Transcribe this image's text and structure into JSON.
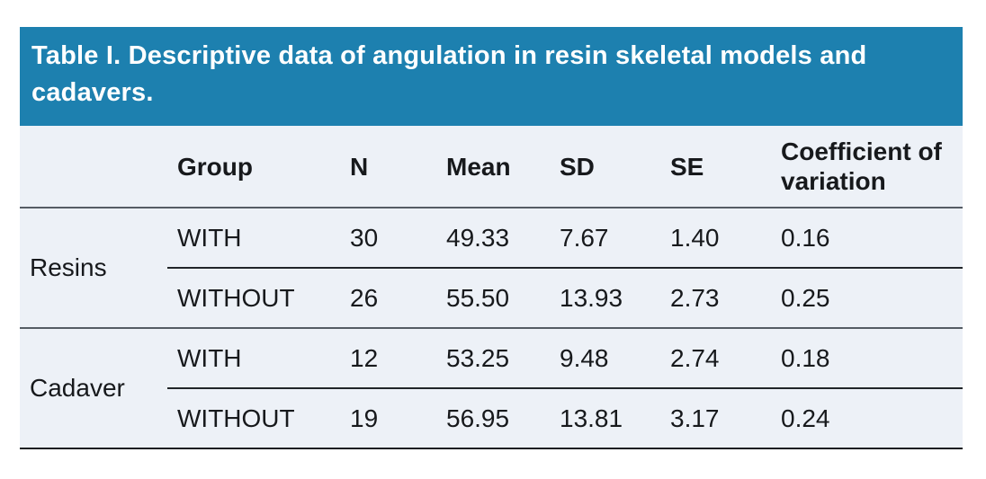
{
  "table": {
    "title": "Table I. Descriptive data of angulation in resin skeletal models and cadavers.",
    "columns": {
      "group": "Group",
      "n": "N",
      "mean": "Mean",
      "sd": "SD",
      "se": "SE",
      "cv": "Coefficient of variation"
    },
    "groups": [
      {
        "label": "Resins",
        "rows": [
          {
            "group": "WITH",
            "n": "30",
            "mean": "49.33",
            "sd": "7.67",
            "se": "1.40",
            "cv": "0.16"
          },
          {
            "group": "WITHOUT",
            "n": "26",
            "mean": "55.50",
            "sd": "13.93",
            "se": "2.73",
            "cv": "0.25"
          }
        ]
      },
      {
        "label": "Cadaver",
        "rows": [
          {
            "group": "WITH",
            "n": "12",
            "mean": "53.25",
            "sd": "9.48",
            "se": "2.74",
            "cv": "0.18"
          },
          {
            "group": "WITHOUT",
            "n": "19",
            "mean": "56.95",
            "sd": "13.81",
            "se": "3.17",
            "cv": "0.24"
          }
        ]
      }
    ],
    "colors": {
      "title_band_bg": "#1d80af",
      "title_text": "#ffffff",
      "body_bg": "#edf1f7",
      "rule_gray": "#555c64",
      "rule_dark": "#212529"
    }
  }
}
